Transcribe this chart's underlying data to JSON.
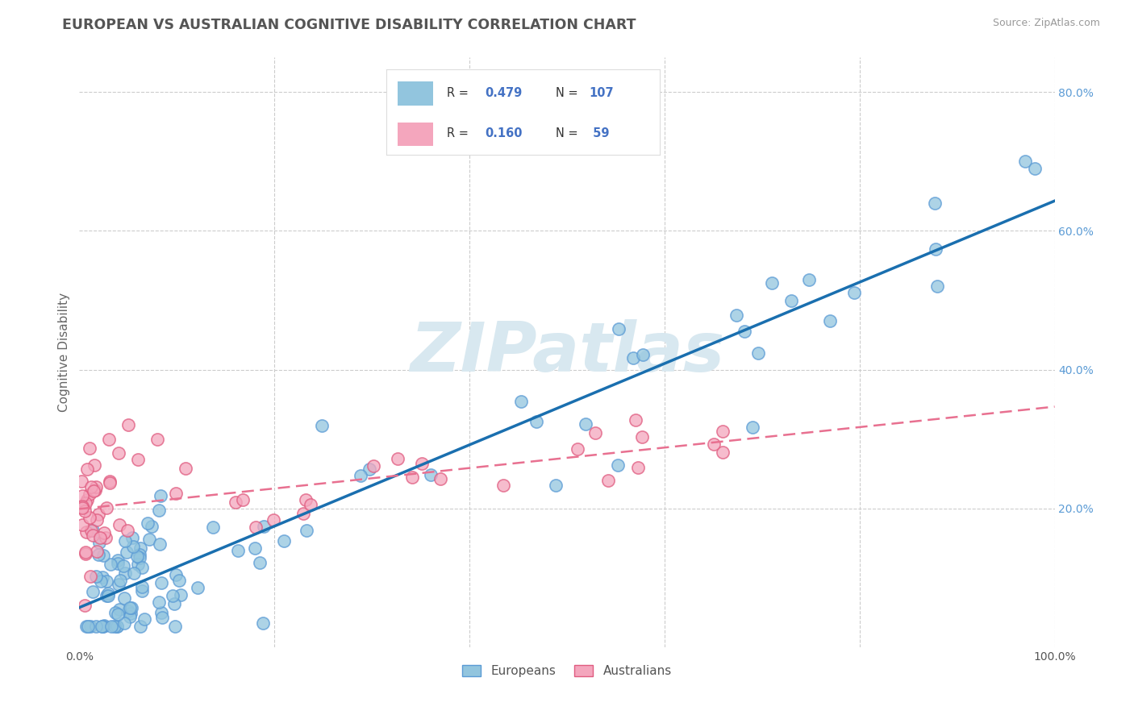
{
  "title": "EUROPEAN VS AUSTRALIAN COGNITIVE DISABILITY CORRELATION CHART",
  "source": "Source: ZipAtlas.com",
  "ylabel": "Cognitive Disability",
  "xlim": [
    0.0,
    1.0
  ],
  "ylim": [
    0.0,
    0.85
  ],
  "x_ticks": [
    0.0,
    0.2,
    0.4,
    0.6,
    0.8,
    1.0
  ],
  "x_tick_labels": [
    "0.0%",
    "",
    "",
    "",
    "",
    "100.0%"
  ],
  "y_ticks": [
    0.2,
    0.4,
    0.6,
    0.8
  ],
  "y_tick_labels": [
    "20.0%",
    "40.0%",
    "60.0%",
    "80.0%"
  ],
  "european_color": "#92c5de",
  "australian_color": "#f4a6bd",
  "european_edge": "#5b9bd5",
  "australian_edge": "#e05c80",
  "european_R": 0.479,
  "european_N": 107,
  "australian_R": 0.16,
  "australian_N": 59,
  "background_color": "#ffffff",
  "grid_color": "#cccccc",
  "title_color": "#555555",
  "reg_line_eu_color": "#1a6faf",
  "reg_line_au_color": "#e87090",
  "watermark_color": "#d8e8f0",
  "legend_label_european": "Europeans",
  "legend_label_australian": "Australians"
}
